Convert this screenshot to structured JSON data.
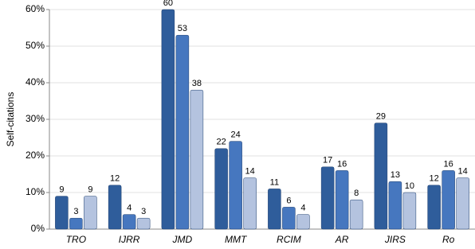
{
  "chart_data": {
    "type": "bar",
    "y_label": "Self-citations",
    "categories": [
      "TRO",
      "IJRR",
      "JMD",
      "MMT",
      "RCIM",
      "AR",
      "JIRS",
      "Ro"
    ],
    "series": [
      {
        "color": "#2f5d9b",
        "values": [
          9,
          12,
          60,
          22,
          11,
          17,
          29,
          12
        ]
      },
      {
        "color": "#4677bf",
        "values": [
          3,
          4,
          53,
          24,
          6,
          16,
          13,
          16
        ]
      },
      {
        "color": "#b4c3df",
        "values": [
          9,
          3,
          38,
          14,
          4,
          8,
          10,
          14
        ]
      }
    ],
    "ylim": [
      0,
      60
    ],
    "yticks": [
      {
        "value": 0,
        "label": "0%"
      },
      {
        "value": 10,
        "label": "10%"
      },
      {
        "value": 20,
        "label": "20%"
      },
      {
        "value": 30,
        "label": "30%"
      },
      {
        "value": 40,
        "label": "40%"
      },
      {
        "value": 50,
        "label": "50%"
      },
      {
        "value": 60,
        "label": "60%"
      }
    ],
    "grid": true
  }
}
